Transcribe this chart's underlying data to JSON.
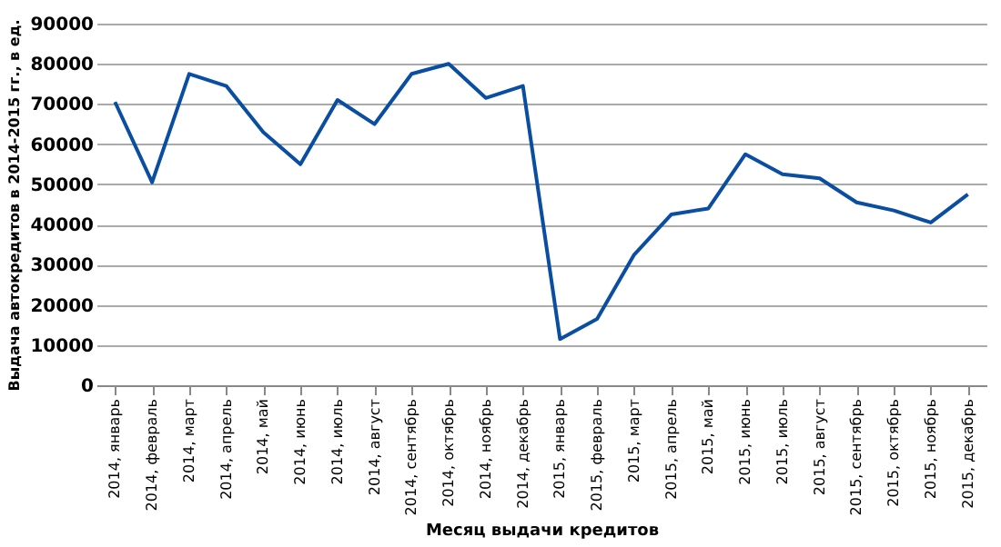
{
  "chart_data": {
    "type": "line",
    "xlabel": "Месяц выдачи кредитов",
    "ylabel": "Выдача автокредитов в 2014-2015 гг., в ед.",
    "categories": [
      "2014, январь",
      "2014, февраль",
      "2014, март",
      "2014, апрель",
      "2014, май",
      "2014, июнь",
      "2014, июль",
      "2014, август",
      "2014, сентябрь",
      "2014, октябрь",
      "2014, ноябрь",
      "2014, декабрь",
      "2015, январь",
      "2015, февраль",
      "2015, март",
      "2015, апрель",
      "2015, май",
      "2015, июнь",
      "2015, июль",
      "2015, август",
      "2015, сентябрь",
      "2015, октябрь",
      "2015, ноябрь",
      "2015, декабрь"
    ],
    "series": [
      {
        "color": "#0a4ea2",
        "values": [
          70500,
          50500,
          77500,
          74500,
          63000,
          55000,
          71000,
          65000,
          77500,
          80000,
          71500,
          74500,
          11500,
          16500,
          32500,
          42500,
          44000,
          57500,
          52500,
          51500,
          45500,
          43500,
          40500,
          47500
        ]
      }
    ],
    "ylim": [
      0,
      90000
    ],
    "yticks": [
      0,
      10000,
      20000,
      30000,
      40000,
      50000,
      60000,
      70000,
      80000,
      90000
    ],
    "grid": "y",
    "legend": false,
    "marker": "none",
    "line_style": "solid"
  }
}
